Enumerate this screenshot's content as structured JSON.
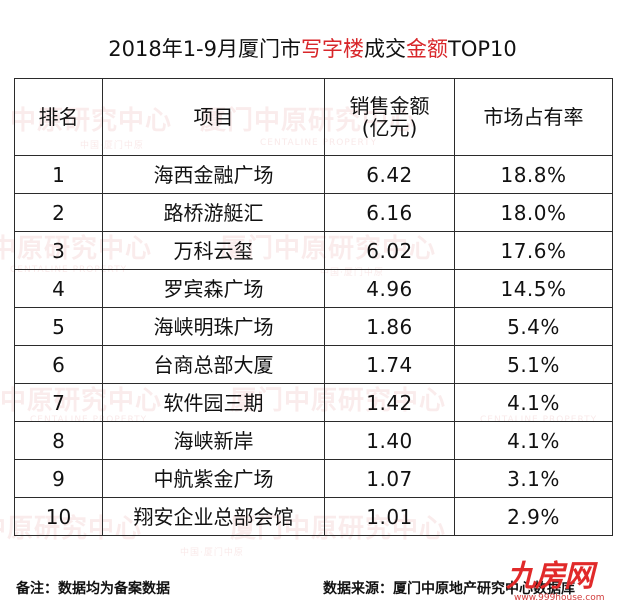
{
  "title": {
    "prefix": "2018年1-9月厦门市",
    "highlight1": "写字楼",
    "middle": "成交",
    "highlight2": "金额",
    "suffix": "TOP10",
    "highlight_color": "#d8262a"
  },
  "watermark": {
    "text_a": "中原研究中心",
    "text_b": "厦门中原研究中心",
    "text_c": "厦门中",
    "sub_a": "中国·厦门中原",
    "sub_b": "CENTALINE PROPERTY"
  },
  "chart_data": {
    "type": "table",
    "columns": [
      "排名",
      "项目",
      "销售金额\n(亿元)",
      "市场占有率"
    ],
    "rows": [
      {
        "rank": "1",
        "project": "海西金融广场",
        "sales": "6.42",
        "share": "18.8%"
      },
      {
        "rank": "2",
        "project": "路桥游艇汇",
        "sales": "6.16",
        "share": "18.0%"
      },
      {
        "rank": "3",
        "project": "万科云玺",
        "sales": "6.02",
        "share": "17.6%"
      },
      {
        "rank": "4",
        "project": "罗宾森广场",
        "sales": "4.96",
        "share": "14.5%"
      },
      {
        "rank": "5",
        "project": "海峡明珠广场",
        "sales": "1.86",
        "share": "5.4%"
      },
      {
        "rank": "6",
        "project": "台商总部大厦",
        "sales": "1.74",
        "share": "5.1%"
      },
      {
        "rank": "7",
        "project": "软件园三期",
        "sales": "1.42",
        "share": "4.1%"
      },
      {
        "rank": "8",
        "project": "海峡新岸",
        "sales": "1.40",
        "share": "4.1%"
      },
      {
        "rank": "9",
        "project": "中航紫金广场",
        "sales": "1.07",
        "share": "3.1%"
      },
      {
        "rank": "10",
        "project": "翔安企业总部会馆",
        "sales": "1.01",
        "share": "2.9%"
      }
    ]
  },
  "header": {
    "rank": "排名",
    "project": "项目",
    "sales_line1": "销售金额",
    "sales_line2": "(亿元)",
    "share": "市场占有率"
  },
  "footer": {
    "note": "备注：数据均为备案数据",
    "source": "数据来源：厦门中原地产研究中心数据库"
  },
  "logo": {
    "mark": "九房网",
    "url": "www.999house.com"
  }
}
